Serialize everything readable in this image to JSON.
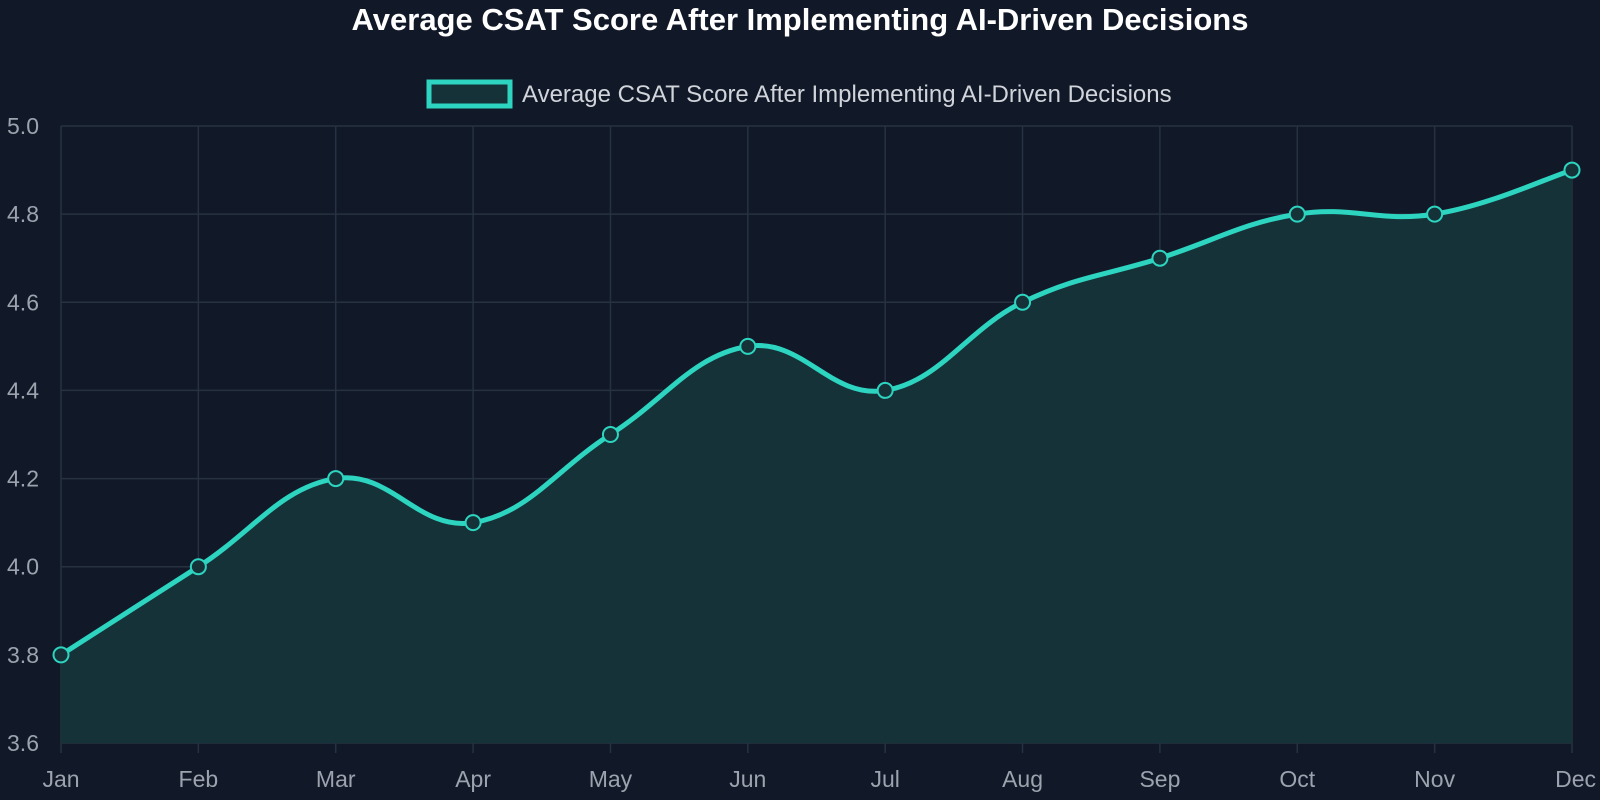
{
  "chart_data": {
    "type": "area",
    "title": "Average CSAT Score After Implementing AI-Driven Decisions",
    "categories": [
      "Jan",
      "Feb",
      "Mar",
      "Apr",
      "May",
      "Jun",
      "Jul",
      "Aug",
      "Sep",
      "Oct",
      "Nov",
      "Dec"
    ],
    "series": [
      {
        "name": "Average CSAT Score After Implementing AI-Driven Decisions",
        "values": [
          3.8,
          4.0,
          4.2,
          4.1,
          4.3,
          4.5,
          4.4,
          4.6,
          4.7,
          4.8,
          4.8,
          4.9
        ]
      }
    ],
    "ylim": [
      3.6,
      5.0
    ],
    "yticks": [
      "3.6",
      "3.8",
      "4.0",
      "4.2",
      "4.4",
      "4.6",
      "4.8",
      "5.0"
    ],
    "xlabel": "",
    "ylabel": "",
    "grid": true,
    "legend_position": "top-center",
    "colors": {
      "line": "#2dd4bf",
      "fill": "#153239",
      "background": "#111827",
      "grid": "#263241",
      "tick_text": "#9ca3af",
      "legend_text": "#d1d5db",
      "title_text": "#ffffff"
    }
  }
}
